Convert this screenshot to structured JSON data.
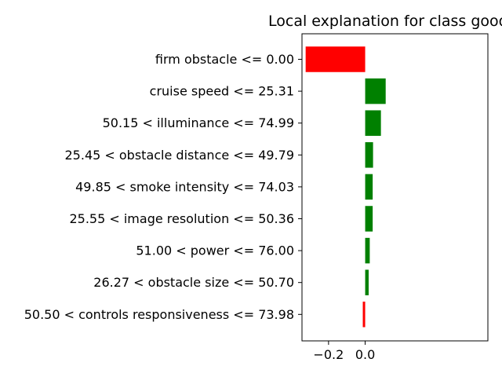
{
  "chart_data": {
    "type": "bar",
    "orientation": "horizontal",
    "title": "Local explanation for class good",
    "xlabel": "",
    "ylabel": "",
    "xlim": [
      -0.345,
      0.67
    ],
    "grid": false,
    "legend": "none",
    "xticks": [
      {
        "value": -0.2,
        "label": "−0.2"
      },
      {
        "value": 0.0,
        "label": "0.0"
      }
    ],
    "positive_color": "#008000",
    "negative_color": "#ff0000",
    "categories": [
      "firm obstacle <= 0.00",
      "cruise speed <= 25.31",
      "50.15 < illuminance <= 74.99",
      "25.45 < obstacle distance <= 49.79",
      "49.85 < smoke intensity <= 74.03",
      "25.55 < image resolution <= 50.36",
      "51.00 < power <= 76.00",
      "26.27 < obstacle size <= 50.70",
      "50.50 < controls responsiveness <= 73.98"
    ],
    "values": [
      -0.325,
      0.112,
      0.086,
      0.043,
      0.041,
      0.041,
      0.025,
      0.019,
      -0.013
    ]
  }
}
